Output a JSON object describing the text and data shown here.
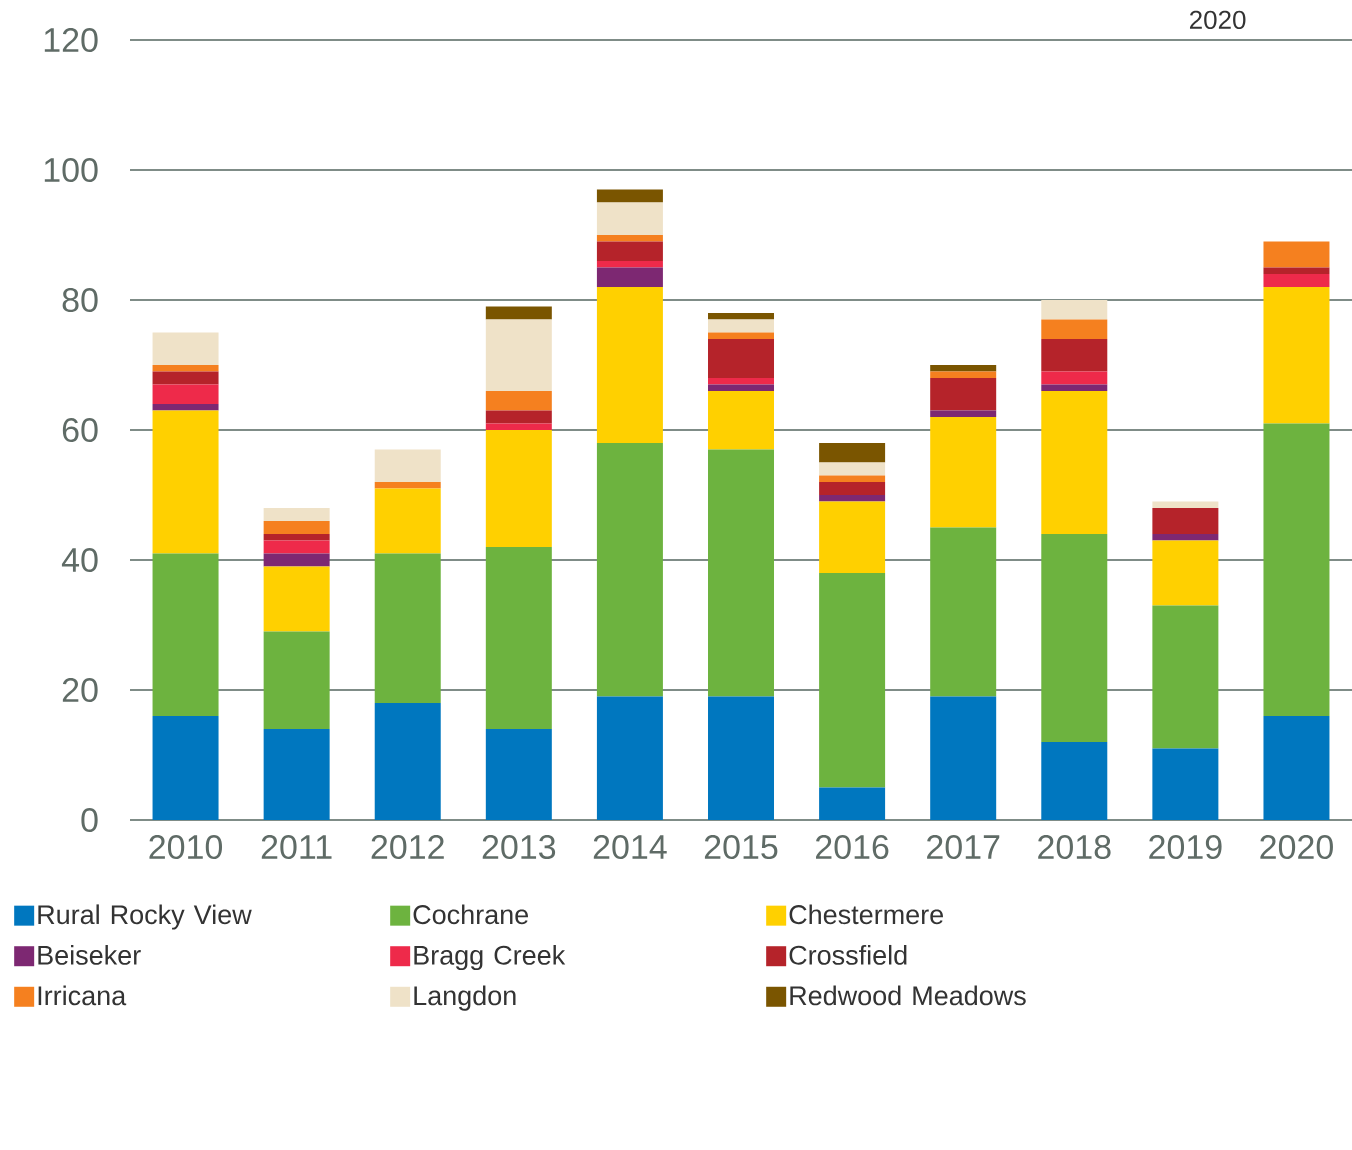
{
  "chart_data": {
    "type": "bar",
    "stacked": true,
    "categories": [
      "2010",
      "2011",
      "2012",
      "2013",
      "2014",
      "2015",
      "2016",
      "2017",
      "2018",
      "2019",
      "2020"
    ],
    "series": [
      {
        "name": "Rural Rocky View",
        "color": "#0077bf",
        "values": [
          16,
          14,
          18,
          14,
          19,
          19,
          5,
          19,
          12,
          11,
          16
        ]
      },
      {
        "name": "Cochrane",
        "color": "#6db33f",
        "values": [
          25,
          15,
          23,
          28,
          39,
          38,
          33,
          26,
          32,
          22,
          45
        ]
      },
      {
        "name": "Chestermere",
        "color": "#ffd000",
        "values": [
          22,
          10,
          10,
          18,
          24,
          9,
          11,
          17,
          22,
          10,
          21
        ]
      },
      {
        "name": "Beiseker",
        "color": "#7d2872",
        "values": [
          1,
          2,
          0,
          0,
          3,
          1,
          1,
          1,
          1,
          1,
          0
        ]
      },
      {
        "name": "Bragg Creek",
        "color": "#ee2a4a",
        "values": [
          3,
          2,
          0,
          1,
          1,
          1,
          0,
          0,
          2,
          0,
          2
        ]
      },
      {
        "name": "Crossfield",
        "color": "#b5232a",
        "values": [
          2,
          1,
          0,
          2,
          3,
          6,
          2,
          5,
          5,
          4,
          1
        ]
      },
      {
        "name": "Irricana",
        "color": "#f5801f",
        "values": [
          1,
          2,
          1,
          3,
          1,
          1,
          1,
          1,
          3,
          0,
          4
        ]
      },
      {
        "name": "Langdon",
        "color": "#efe2c8",
        "values": [
          5,
          2,
          5,
          11,
          5,
          2,
          2,
          0,
          3,
          1,
          0
        ]
      },
      {
        "name": "Redwood Meadows",
        "color": "#7a5500",
        "values": [
          0,
          0,
          0,
          2,
          2,
          1,
          3,
          1,
          0,
          0,
          0
        ]
      }
    ],
    "ylim": [
      0,
      120
    ],
    "yticks": [
      0,
      20,
      40,
      60,
      80,
      100,
      120
    ],
    "grid": "y",
    "legend": "bottom",
    "annotations": [
      "2020"
    ]
  }
}
